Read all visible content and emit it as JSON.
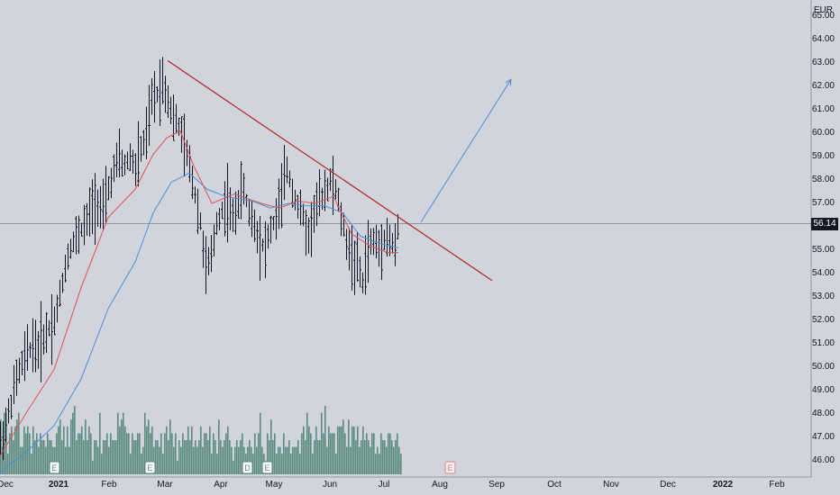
{
  "chart_data": {
    "type": "bar",
    "currency": "EUR",
    "last_price": "56.14",
    "y_ticks": [
      "46.00",
      "47.00",
      "48.00",
      "49.00",
      "50.00",
      "51.00",
      "52.00",
      "53.00",
      "54.00",
      "55.00",
      "56.00",
      "57.00",
      "58.00",
      "59.00",
      "60.00",
      "61.00",
      "62.00",
      "63.00",
      "64.00",
      "65.00"
    ],
    "x_ticks": [
      {
        "label": "Dec",
        "bold": false
      },
      {
        "label": "2021",
        "bold": true
      },
      {
        "label": "Feb",
        "bold": false
      },
      {
        "label": "Mar",
        "bold": false
      },
      {
        "label": "Apr",
        "bold": false
      },
      {
        "label": "May",
        "bold": false
      },
      {
        "label": "Jun",
        "bold": false
      },
      {
        "label": "Jul",
        "bold": false
      },
      {
        "label": "Aug",
        "bold": false
      },
      {
        "label": "Sep",
        "bold": false
      },
      {
        "label": "Oct",
        "bold": false
      },
      {
        "label": "Nov",
        "bold": false
      },
      {
        "label": "Dec",
        "bold": false
      },
      {
        "label": "2022",
        "bold": true
      },
      {
        "label": "Feb",
        "bold": false
      }
    ],
    "ylim": [
      45.5,
      65.2
    ],
    "price_path": [
      [
        0,
        46.8
      ],
      [
        6,
        47.5
      ],
      [
        12,
        48.5
      ],
      [
        18,
        49.5
      ],
      [
        24,
        50.1
      ],
      [
        30,
        50.6
      ],
      [
        36,
        51.0
      ],
      [
        42,
        50.8
      ],
      [
        48,
        51.3
      ],
      [
        54,
        51.7
      ],
      [
        60,
        52.0
      ],
      [
        66,
        53.0
      ],
      [
        72,
        54.3
      ],
      [
        78,
        55.2
      ],
      [
        84,
        55.5
      ],
      [
        90,
        55.9
      ],
      [
        96,
        56.2
      ],
      [
        102,
        56.9
      ],
      [
        108,
        57.1
      ],
      [
        114,
        56.6
      ],
      [
        120,
        57.6
      ],
      [
        126,
        58.4
      ],
      [
        132,
        58.9
      ],
      [
        138,
        58.6
      ],
      [
        144,
        59.0
      ],
      [
        150,
        58.5
      ],
      [
        156,
        59.3
      ],
      [
        162,
        59.8
      ],
      [
        168,
        61.4
      ],
      [
        174,
        61.7
      ],
      [
        180,
        62.2
      ],
      [
        186,
        61.5
      ],
      [
        192,
        60.6
      ],
      [
        198,
        60.3
      ],
      [
        204,
        59.4
      ],
      [
        210,
        58.6
      ],
      [
        216,
        57.4
      ],
      [
        222,
        56.2
      ],
      [
        228,
        54.2
      ],
      [
        234,
        54.6
      ],
      [
        240,
        56.2
      ],
      [
        246,
        56.7
      ],
      [
        252,
        57.1
      ],
      [
        258,
        56.3
      ],
      [
        264,
        57.1
      ],
      [
        270,
        57.6
      ],
      [
        276,
        56.6
      ],
      [
        282,
        56.1
      ],
      [
        288,
        55.4
      ],
      [
        294,
        55.1
      ],
      [
        300,
        55.9
      ],
      [
        306,
        56.4
      ],
      [
        312,
        57.3
      ],
      [
        318,
        58.5
      ],
      [
        324,
        57.6
      ],
      [
        330,
        56.9
      ],
      [
        336,
        56.4
      ],
      [
        342,
        55.6
      ],
      [
        348,
        56.6
      ],
      [
        354,
        57.1
      ],
      [
        360,
        57.6
      ],
      [
        366,
        57.9
      ],
      [
        372,
        57.6
      ],
      [
        378,
        56.4
      ],
      [
        384,
        55.4
      ],
      [
        390,
        54.7
      ],
      [
        396,
        54.4
      ],
      [
        402,
        53.6
      ],
      [
        408,
        55.1
      ],
      [
        414,
        55.4
      ],
      [
        420,
        55.1
      ],
      [
        426,
        55.6
      ],
      [
        432,
        55.4
      ],
      [
        438,
        55.1
      ],
      [
        442,
        56.14
      ]
    ],
    "fast_ma": [
      [
        0,
        46.2
      ],
      [
        30,
        48.1
      ],
      [
        60,
        49.9
      ],
      [
        90,
        53.4
      ],
      [
        120,
        56.4
      ],
      [
        150,
        57.6
      ],
      [
        170,
        59.1
      ],
      [
        185,
        59.8
      ],
      [
        200,
        60.1
      ],
      [
        215,
        58.6
      ],
      [
        235,
        57.0
      ],
      [
        260,
        57.4
      ],
      [
        290,
        57.0
      ],
      [
        310,
        56.8
      ],
      [
        330,
        57.1
      ],
      [
        350,
        57.0
      ],
      [
        370,
        57.3
      ],
      [
        390,
        55.7
      ],
      [
        410,
        55.2
      ],
      [
        430,
        54.9
      ],
      [
        442,
        54.9
      ]
    ],
    "slow_ma": [
      [
        0,
        45.5
      ],
      [
        30,
        46.4
      ],
      [
        60,
        47.5
      ],
      [
        90,
        49.5
      ],
      [
        120,
        52.5
      ],
      [
        150,
        54.5
      ],
      [
        170,
        56.6
      ],
      [
        190,
        57.9
      ],
      [
        210,
        58.3
      ],
      [
        230,
        57.6
      ],
      [
        250,
        57.3
      ],
      [
        280,
        57.1
      ],
      [
        300,
        56.8
      ],
      [
        320,
        57.0
      ],
      [
        340,
        56.9
      ],
      [
        360,
        56.9
      ],
      [
        380,
        56.6
      ],
      [
        400,
        55.6
      ],
      [
        420,
        55.3
      ],
      [
        442,
        55.1
      ]
    ],
    "volume": [
      8,
      4,
      9,
      9,
      3,
      6,
      7,
      5,
      7,
      8,
      9,
      4,
      4,
      7,
      6,
      7,
      6,
      3,
      7,
      5,
      6,
      4,
      6,
      5,
      5,
      4,
      6,
      5,
      5,
      4,
      4,
      6,
      7,
      8,
      5,
      7,
      4,
      7,
      4,
      8,
      9,
      10,
      5,
      6,
      6,
      7,
      5,
      8,
      5,
      7,
      6,
      2,
      5,
      5,
      4,
      9,
      3,
      5,
      5,
      6,
      4,
      6,
      5,
      5,
      5,
      9,
      7,
      8,
      9,
      7,
      6,
      6,
      3,
      6,
      5,
      5,
      6,
      6,
      3,
      4,
      9,
      7,
      8,
      6,
      7,
      4,
      5,
      5,
      4,
      6,
      3,
      6,
      7,
      5,
      8,
      6,
      4,
      6,
      2,
      5,
      4,
      6,
      5,
      5,
      7,
      5,
      7,
      4,
      5,
      4,
      5,
      7,
      4,
      6,
      6,
      5,
      7,
      3,
      6,
      5,
      3,
      8,
      5,
      4,
      5,
      6,
      7,
      5,
      4,
      2,
      4,
      5,
      4,
      5,
      6,
      4,
      3,
      4,
      5,
      4,
      3,
      6,
      4,
      6,
      9,
      4,
      3,
      2,
      6,
      5,
      8,
      5,
      6,
      3,
      4,
      4,
      3,
      6,
      4,
      4,
      5,
      3,
      4,
      4,
      4,
      5,
      3,
      6,
      7,
      5,
      9,
      7,
      6,
      3,
      5,
      7,
      5,
      5,
      9,
      6,
      10,
      4,
      7,
      6,
      6,
      6,
      3,
      7,
      7,
      7,
      8,
      6,
      4,
      8,
      4,
      7,
      7,
      5,
      7,
      4,
      5,
      7,
      5,
      6,
      5,
      4,
      6,
      6,
      3,
      4,
      3,
      6,
      5,
      5,
      4,
      6,
      6,
      5,
      4,
      5,
      6,
      4,
      3,
      5,
      4,
      5,
      4,
      5,
      6,
      3
    ],
    "event_markers": [
      {
        "day": 60,
        "label": "E"
      },
      {
        "day": 166,
        "label": "E"
      },
      {
        "day": 274,
        "label": "D"
      },
      {
        "day": 296,
        "label": "E"
      },
      {
        "day": 499,
        "label": "E"
      }
    ],
    "trendline": [
      [
        186,
        63.1
      ],
      [
        546,
        53.7
      ]
    ],
    "projection_arrow": [
      [
        467,
        56.2
      ],
      [
        567,
        62.3
      ]
    ],
    "colors": {
      "background": "#d1d4dc",
      "bars": "#131722",
      "fast_ma": "#e05252",
      "slow_ma": "#4a90d9",
      "volume": "#5b8a7e",
      "trendline": "#b22222",
      "projection": "#4a90d9"
    }
  }
}
